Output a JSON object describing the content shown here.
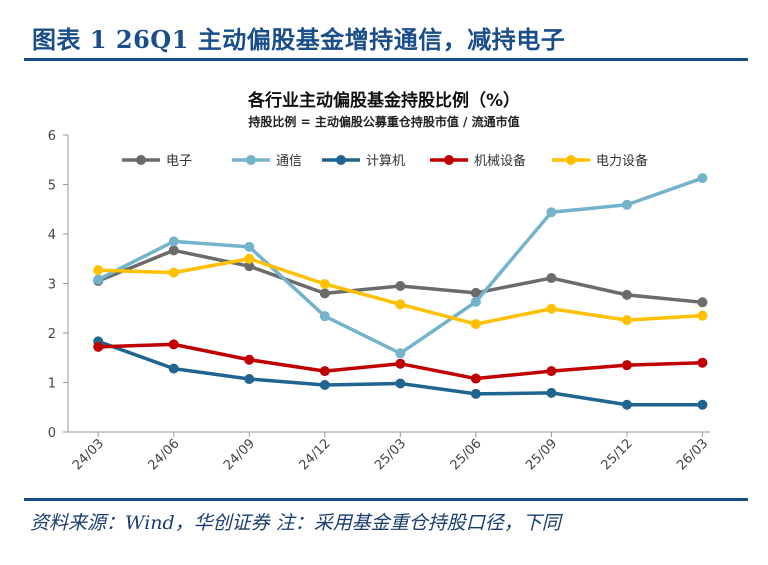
{
  "header": {
    "title": "图表 1   26Q1 主动偏股基金增持通信，减持电子"
  },
  "footer": {
    "note": "资料来源：Wind，华创证券   注：采用基金重仓持股口径，下同"
  },
  "chart_data": {
    "type": "line",
    "title": "各行业主动偏股基金持股比例（%）",
    "subtitle": "持股比例 = 主动偏股公募重仓持股市值 / 流通市值",
    "categories": [
      "24/03",
      "24/06",
      "24/09",
      "24/12",
      "25/03",
      "25/06",
      "25/09",
      "25/12",
      "26/03"
    ],
    "ylim": [
      0,
      6
    ],
    "yticks": [
      0,
      1,
      2,
      3,
      4,
      5,
      6
    ],
    "grid": false,
    "legend_position": "top",
    "series": [
      {
        "name": "电子",
        "color": "#6b6b6b",
        "values": [
          3.05,
          3.67,
          3.35,
          2.8,
          2.95,
          2.81,
          3.11,
          2.77,
          2.62
        ]
      },
      {
        "name": "通信",
        "color": "#74b3cc",
        "values": [
          3.08,
          3.85,
          3.74,
          2.34,
          1.59,
          2.63,
          4.44,
          4.59,
          5.13
        ]
      },
      {
        "name": "计算机",
        "color": "#1f6590",
        "values": [
          1.83,
          1.28,
          1.07,
          0.95,
          0.98,
          0.77,
          0.79,
          0.55,
          0.55
        ]
      },
      {
        "name": "机械设备",
        "color": "#c00000",
        "values": [
          1.72,
          1.77,
          1.46,
          1.23,
          1.38,
          1.08,
          1.23,
          1.35,
          1.4
        ]
      },
      {
        "name": "电力设备",
        "color": "#ffc000",
        "values": [
          3.27,
          3.22,
          3.5,
          2.99,
          2.58,
          2.18,
          2.49,
          2.26,
          2.35
        ]
      }
    ]
  }
}
